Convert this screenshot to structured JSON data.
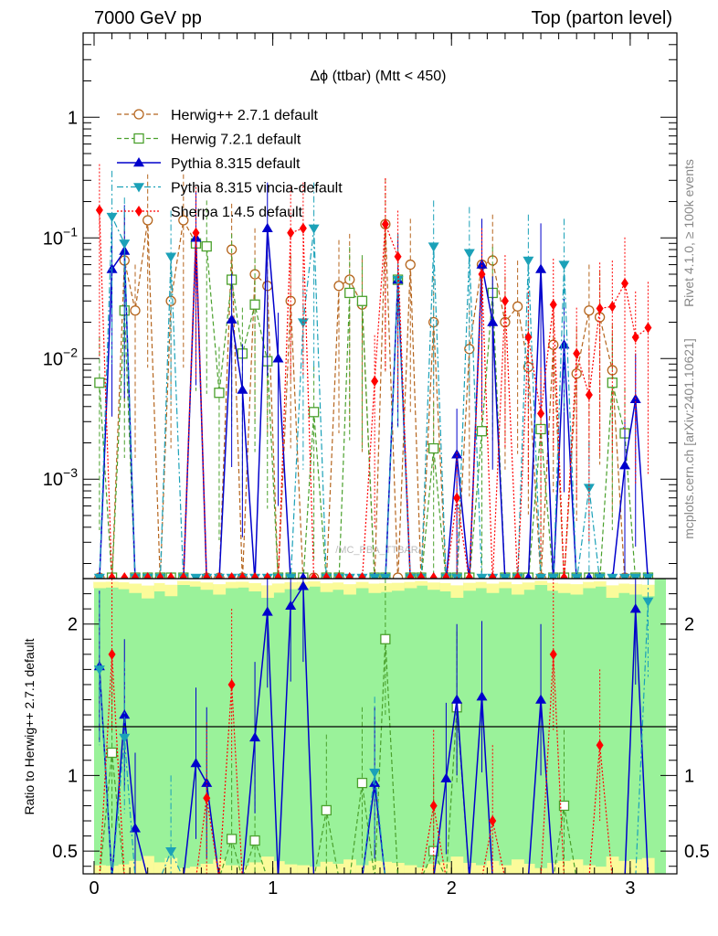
{
  "header": {
    "left": "7000 GeV pp",
    "right": "Top (parton level)"
  },
  "side": {
    "rivet": "Rivet 4.1.0, ≥ 100k events",
    "mcplots": "mcplots.cern.ch [arXiv:2401.10621]"
  },
  "watermark": "/MC_PBA_TTBAR/",
  "colors": {
    "herwig271": "#b5651d",
    "herwig721": "#4aa02c",
    "pythia": "#0000cc",
    "vincia": "#1ba1b8",
    "sherpa": "#ff0000",
    "band_green": "#9af29a",
    "band_yellow": "#fbfb9a"
  },
  "chart_data": {
    "type": "line",
    "title": "Δϕ (ttbar) (Mtt < 450)",
    "xlabel": "",
    "ylabel_top": "",
    "ylabel_ratio": "Ratio to Herwig++ 2.7.1 default",
    "xlim": [
      0,
      3.2
    ],
    "ylim_top": [
      0.00015,
      5
    ],
    "ylim_ratio": [
      0.35,
      2.3
    ],
    "yscale_top": "log",
    "x_ticks": [
      "0",
      "1",
      "2",
      "3"
    ],
    "y_ticks_top": [
      "10^-3",
      "10^-2",
      "10^-1",
      "1"
    ],
    "y_ticks_ratio": [
      "0.5",
      "1",
      "2"
    ],
    "legend_position": "top-left",
    "x": [
      0.03,
      0.1,
      0.17,
      0.23,
      0.3,
      0.37,
      0.43,
      0.5,
      0.57,
      0.63,
      0.7,
      0.77,
      0.83,
      0.9,
      0.97,
      1.03,
      1.1,
      1.17,
      1.23,
      1.3,
      1.37,
      1.43,
      1.5,
      1.57,
      1.63,
      1.7,
      1.77,
      1.83,
      1.9,
      1.97,
      2.03,
      2.1,
      2.17,
      2.23,
      2.3,
      2.37,
      2.43,
      2.5,
      2.57,
      2.63,
      2.7,
      2.77,
      2.83,
      2.9,
      2.97,
      3.03,
      3.1
    ],
    "series": [
      {
        "name": "Herwig++ 2.7.1 default",
        "style": "dashed",
        "marker": "open-circle",
        "values": [
          0,
          0,
          0.065,
          0.025,
          0.14,
          0,
          0.03,
          0.14,
          0.09,
          0,
          0,
          0.08,
          0,
          0.05,
          0.04,
          0,
          0.03,
          0,
          0,
          0,
          0.04,
          0.045,
          0.028,
          0,
          0.13,
          0,
          0.06,
          0,
          0.02,
          0,
          0,
          0.012,
          0.06,
          0.065,
          0.02,
          0.027,
          0.0085,
          0,
          0.013,
          0,
          0.0075,
          0.025,
          0.022,
          0.008,
          0,
          0,
          0
        ],
        "ratio": []
      },
      {
        "name": "Herwig 7.2.1 default",
        "style": "dashed",
        "marker": "open-square",
        "values": [
          0.0063,
          0,
          0.025,
          0,
          0,
          0,
          0,
          0,
          0.09,
          0.085,
          0.0052,
          0.045,
          0.011,
          0.028,
          0.0095,
          0,
          0,
          0,
          0.0036,
          0,
          0,
          0.035,
          0.03,
          0,
          0,
          0.045,
          0,
          0,
          0.0018,
          0,
          0,
          0,
          0.0025,
          0.035,
          0,
          0,
          0,
          0.0026,
          0,
          0,
          0,
          0,
          0,
          0.0063,
          0.0024,
          0,
          0
        ],
        "ratio": [
          0,
          1.15,
          0,
          0,
          0,
          0,
          0,
          0,
          0,
          0,
          0,
          0.58,
          0,
          0.57,
          0,
          0,
          0,
          0,
          0,
          0.77,
          0,
          0,
          0.95,
          0,
          1.9,
          0,
          0,
          0,
          0.5,
          0,
          1.45,
          0,
          0,
          0,
          0,
          0,
          0,
          0,
          0,
          0.8,
          0,
          0,
          0,
          0,
          0,
          0,
          0
        ]
      },
      {
        "name": "Pythia 8.315 default",
        "style": "solid",
        "marker": "filled-triangle-up",
        "values": [
          0,
          0.055,
          0.078,
          0,
          0,
          0,
          0,
          0,
          0.1,
          0,
          0,
          0.021,
          0.0055,
          0,
          0.12,
          0.01,
          0,
          0,
          0,
          0,
          0,
          0,
          0,
          0,
          0,
          0.045,
          0,
          0,
          0,
          0,
          0.0016,
          0,
          0.06,
          0.02,
          0,
          0,
          0,
          0.055,
          0,
          0.013,
          0,
          0,
          0,
          0,
          0.0013,
          0.0046,
          0
        ],
        "ratio": [
          1.72,
          0,
          1.4,
          0.65,
          0,
          0,
          0,
          0,
          1.08,
          0.95,
          0,
          0,
          0,
          1.25,
          2.08,
          0,
          2.12,
          2.25,
          0,
          0,
          0,
          0,
          0,
          0.95,
          0,
          0,
          0,
          0,
          0,
          0.98,
          1.5,
          0,
          1.52,
          0,
          0,
          0,
          0,
          1.5,
          0,
          0,
          0,
          0,
          0,
          0,
          0,
          2.1,
          0
        ]
      },
      {
        "name": "Pythia 8.315 vincia-default",
        "style": "dashdot",
        "marker": "filled-triangle-down",
        "values": [
          0,
          0.15,
          0.09,
          0,
          0,
          0,
          0.07,
          0,
          0,
          0,
          0,
          0,
          0,
          0,
          0,
          0,
          0,
          0.02,
          0.12,
          0,
          0,
          0,
          0,
          0,
          0,
          0.045,
          0,
          0,
          0.085,
          0,
          0,
          0.075,
          0,
          0,
          0,
          0,
          0.065,
          0,
          0,
          0.06,
          0,
          0.00085,
          0,
          0,
          0,
          0,
          0
        ],
        "ratio": [
          1.7,
          0,
          1.25,
          0,
          0,
          0,
          0.5,
          0,
          0,
          0,
          0,
          0,
          0,
          0,
          0,
          0,
          0,
          0,
          0,
          0,
          0,
          0,
          0,
          1.02,
          0,
          0,
          0,
          0,
          0,
          0,
          0,
          0,
          0,
          0,
          0,
          0,
          0,
          0,
          0,
          0,
          0,
          0,
          0,
          0,
          0,
          0,
          2.15
        ]
      },
      {
        "name": "Sherpa 1.4.5 default",
        "style": "dotted",
        "marker": "filled-diamond",
        "values": [
          0.17,
          0,
          0,
          0,
          0,
          0,
          0,
          0,
          0.11,
          0,
          0,
          0,
          0,
          0,
          0,
          0,
          0.11,
          0.12,
          0,
          0,
          0,
          0,
          0,
          0.0065,
          0.13,
          0.07,
          0,
          0,
          0,
          0,
          0.0007,
          0,
          0.05,
          0,
          0.03,
          0,
          0.015,
          0.0035,
          0.028,
          0,
          0.011,
          0.005,
          0.026,
          0.027,
          0.042,
          0.015,
          0.018
        ],
        "ratio": [
          0,
          1.8,
          0,
          0,
          0,
          0,
          0,
          0,
          0,
          0.85,
          0,
          1.6,
          0,
          0,
          0,
          0,
          0,
          0,
          0,
          0,
          0,
          0,
          0,
          0,
          0,
          0,
          0,
          0,
          0.8,
          0,
          0,
          0,
          0,
          0.7,
          0,
          0,
          0,
          0,
          1.8,
          0,
          0,
          0,
          1.2,
          0,
          0,
          0,
          0
        ]
      }
    ]
  }
}
